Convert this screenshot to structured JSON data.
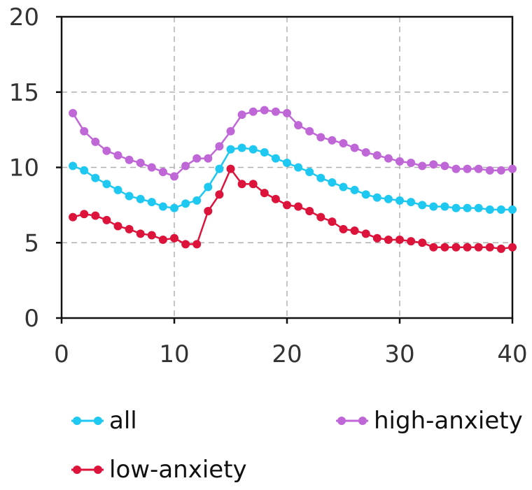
{
  "chart_data": {
    "type": "line",
    "title": "",
    "xlabel": "",
    "ylabel": "",
    "xlim": [
      0,
      40
    ],
    "ylim": [
      0,
      20
    ],
    "xticks": [
      0,
      10,
      20,
      30,
      40
    ],
    "yticks": [
      0,
      5,
      10,
      15,
      20
    ],
    "grid": true,
    "legend_position": "bottom",
    "x": [
      1,
      2,
      3,
      4,
      5,
      6,
      7,
      8,
      9,
      10,
      11,
      12,
      13,
      14,
      15,
      16,
      17,
      18,
      19,
      20,
      21,
      22,
      23,
      24,
      25,
      26,
      27,
      28,
      29,
      30,
      31,
      32,
      33,
      34,
      35,
      36,
      37,
      38,
      39,
      40
    ],
    "series": [
      {
        "name": "all",
        "color": "#1ec8f0",
        "values": [
          10.1,
          9.8,
          9.3,
          8.9,
          8.5,
          8.1,
          7.9,
          7.7,
          7.4,
          7.3,
          7.6,
          7.8,
          8.7,
          9.9,
          11.2,
          11.3,
          11.2,
          11.0,
          10.6,
          10.3,
          10.0,
          9.7,
          9.3,
          9.0,
          8.7,
          8.5,
          8.2,
          8.0,
          7.9,
          7.8,
          7.7,
          7.5,
          7.4,
          7.4,
          7.3,
          7.3,
          7.3,
          7.2,
          7.2,
          7.2
        ]
      },
      {
        "name": "high-anxiety",
        "color": "#c067d8",
        "values": [
          13.6,
          12.4,
          11.7,
          11.1,
          10.8,
          10.5,
          10.3,
          10.0,
          9.7,
          9.4,
          10.1,
          10.6,
          10.6,
          11.4,
          12.4,
          13.5,
          13.7,
          13.8,
          13.7,
          13.6,
          12.8,
          12.4,
          12.0,
          11.8,
          11.6,
          11.3,
          11.0,
          10.8,
          10.6,
          10.4,
          10.3,
          10.1,
          10.2,
          10.1,
          9.9,
          9.9,
          9.9,
          9.8,
          9.8,
          9.9
        ]
      },
      {
        "name": "low-anxiety",
        "color": "#dc143c",
        "values": [
          6.7,
          6.9,
          6.8,
          6.5,
          6.1,
          5.9,
          5.6,
          5.5,
          5.2,
          5.3,
          4.9,
          4.9,
          7.1,
          8.2,
          9.9,
          8.9,
          8.9,
          8.3,
          7.9,
          7.5,
          7.4,
          7.1,
          6.7,
          6.4,
          5.9,
          5.8,
          5.6,
          5.3,
          5.2,
          5.2,
          5.1,
          5.0,
          4.7,
          4.7,
          4.7,
          4.7,
          4.7,
          4.7,
          4.6,
          4.7
        ]
      }
    ]
  }
}
